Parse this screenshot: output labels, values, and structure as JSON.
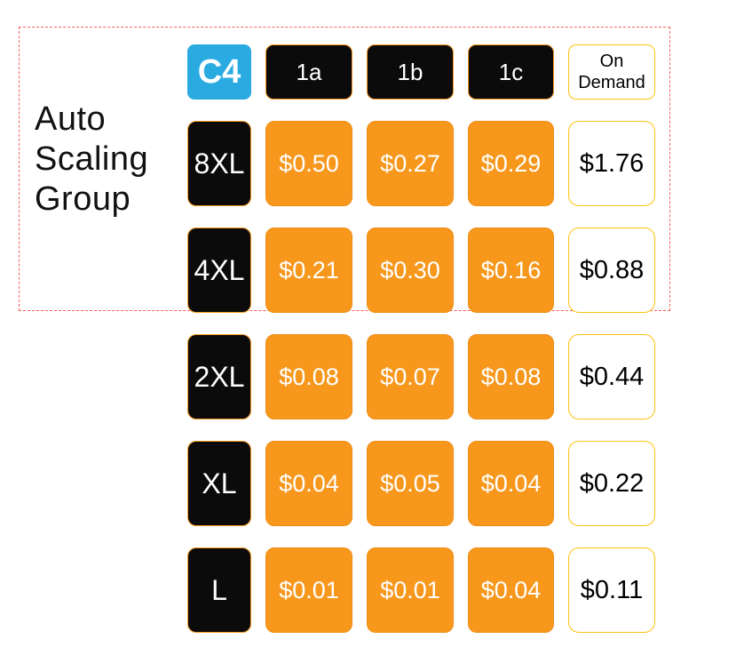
{
  "diagram": {
    "group_label": "Auto Scaling Group",
    "family": "C4",
    "az_headers": [
      "1a",
      "1b",
      "1c"
    ],
    "on_demand_header": "On Demand",
    "rows": [
      {
        "size": "8XL",
        "prices": [
          "$0.50",
          "$0.27",
          "$0.29"
        ],
        "on_demand": "$1.76",
        "in_group": true
      },
      {
        "size": "4XL",
        "prices": [
          "$0.21",
          "$0.30",
          "$0.16"
        ],
        "on_demand": "$0.88",
        "in_group": true
      },
      {
        "size": "2XL",
        "prices": [
          "$0.08",
          "$0.07",
          "$0.08"
        ],
        "on_demand": "$0.44",
        "in_group": false
      },
      {
        "size": "XL",
        "prices": [
          "$0.04",
          "$0.05",
          "$0.04"
        ],
        "on_demand": "$0.22",
        "in_group": false
      },
      {
        "size": "L",
        "prices": [
          "$0.01",
          "$0.01",
          "$0.04"
        ],
        "on_demand": "$0.11",
        "in_group": false
      }
    ],
    "colors": {
      "spot_orange": "#f7981d",
      "family_blue": "#29abe2",
      "on_demand_border_yellow": "#ffc20e",
      "group_outline_red": "#f9605a",
      "box_black": "#0b0b0b"
    }
  }
}
